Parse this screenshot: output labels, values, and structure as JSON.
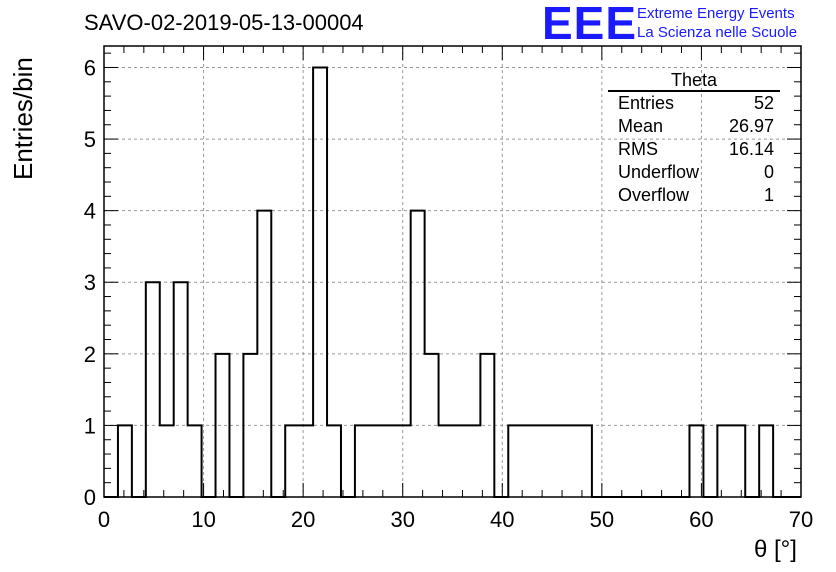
{
  "header": {
    "title": "SAVO-02-2019-05-13-00004",
    "logo": "EEE",
    "logo_line1": "Extreme Energy Events",
    "logo_line2": "La Scienza nelle Scuole"
  },
  "stats": {
    "title": "Theta",
    "rows": [
      {
        "label": "Entries",
        "value": "52"
      },
      {
        "label": "Mean",
        "value": "26.97"
      },
      {
        "label": "RMS",
        "value": "16.14"
      },
      {
        "label": "Underflow",
        "value": "0"
      },
      {
        "label": "Overflow",
        "value": "1"
      }
    ]
  },
  "chart_data": {
    "type": "histogram",
    "xlabel": "θ [°]",
    "ylabel": "Entries/bin",
    "xlim": [
      0,
      70
    ],
    "ylim": [
      0,
      6.3
    ],
    "xticks": [
      0,
      10,
      20,
      30,
      40,
      50,
      60,
      70
    ],
    "yticks": [
      0,
      1,
      2,
      3,
      4,
      5,
      6
    ],
    "grid": true,
    "bin_edges": [
      0,
      1.4,
      2.8,
      4.2,
      5.6,
      7,
      8.4,
      9.8,
      11.2,
      12.6,
      14,
      15.4,
      16.8,
      18.2,
      19.6,
      21,
      22.4,
      23.8,
      25.2,
      26.6,
      28,
      29.4,
      30.8,
      32.2,
      33.6,
      35,
      36.4,
      37.8,
      39.2,
      40.6,
      42,
      43.4,
      44.8,
      46.2,
      47.6,
      49,
      50.4,
      51.8,
      53.2,
      54.6,
      56,
      57.4,
      58.8,
      60.2,
      61.6,
      63,
      64.4,
      65.8,
      67.2,
      68.6,
      70
    ],
    "counts": [
      0,
      1,
      0,
      3,
      1,
      3,
      1,
      0,
      2,
      0,
      2,
      4,
      0,
      1,
      1,
      6,
      1,
      0,
      1,
      1,
      1,
      1,
      4,
      2,
      1,
      1,
      1,
      2,
      0,
      1,
      1,
      1,
      1,
      1,
      1,
      0,
      0,
      0,
      0,
      0,
      0,
      0,
      1,
      0,
      1,
      1,
      0,
      1,
      0,
      0
    ]
  }
}
